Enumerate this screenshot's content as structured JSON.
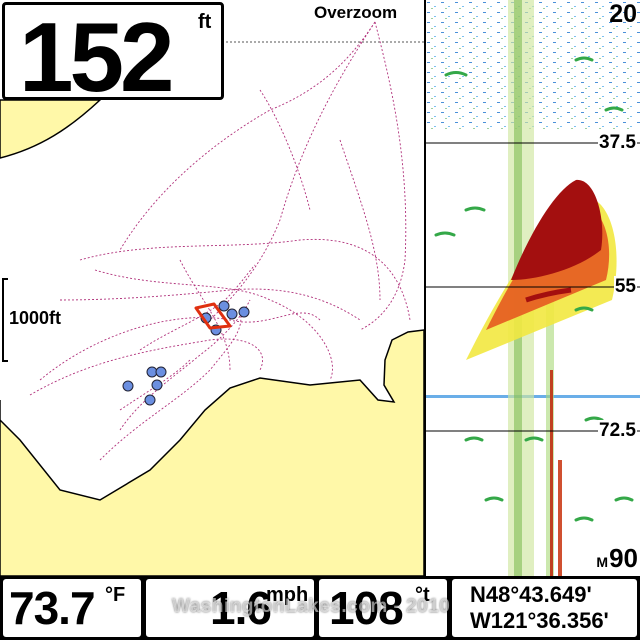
{
  "depth": {
    "value": "152",
    "unit": "ft"
  },
  "map": {
    "overzoom_label": "Overzoom",
    "scale_label": "1000ft",
    "land_color": "#fff8a8",
    "track_color": "#b0307a",
    "waypoint_color": "#6b8fe0",
    "cursor_color": "#e03010"
  },
  "sonar": {
    "top_depth": "20",
    "depth_lines": [
      "37.5",
      "55",
      "72.5"
    ],
    "bottom_depth": "90",
    "bottom_unit": "M"
  },
  "footer": {
    "water_temp": {
      "value": "73.7",
      "unit": "°F"
    },
    "speed": {
      "value": "1.6",
      "unit": "mph"
    },
    "heading": {
      "value": "108",
      "unit": "°t"
    },
    "position": {
      "lat": "N48°43.649'",
      "lon": "W121°36.356'"
    }
  },
  "watermark": "WashingtonLakes.com - 2010"
}
